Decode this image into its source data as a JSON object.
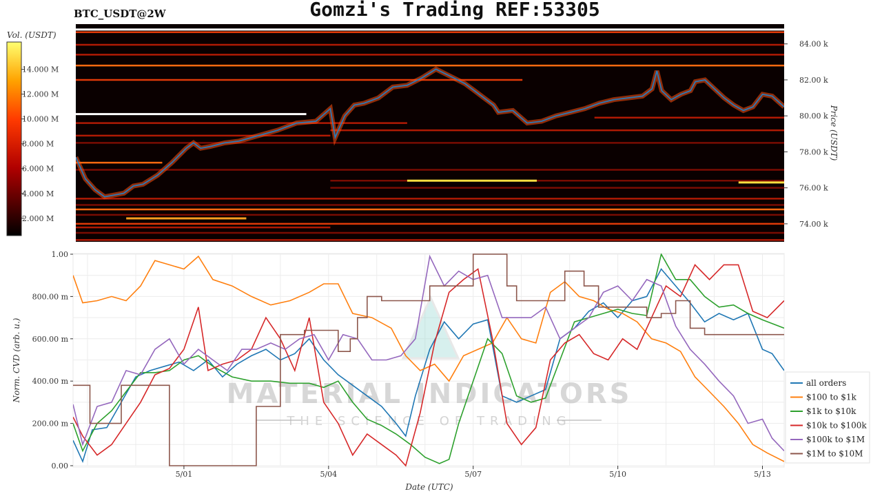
{
  "header": {
    "title": "Gomzi's Trading REF:53305",
    "symbol": "BTC_USDT@2W"
  },
  "watermark": {
    "brand": "MATERIAL INDICATORS",
    "tagline": "THE SCIENCE OF TRADING"
  },
  "colors": {
    "price_line": "#2a7ab8",
    "heatmap_bg": "#0a0000"
  },
  "chart_data": [
    {
      "type": "heatmap",
      "colorbar": {
        "label": "Vol. (USDT)",
        "tick_labels": [
          "14.000 M",
          "12.000 M",
          "10.000 M",
          "8.000 M",
          "6.000 M",
          "4.000 M",
          "2.000 M"
        ],
        "tick_values": [
          14,
          12,
          10,
          8,
          6,
          4,
          2
        ],
        "range": [
          0.6,
          16.2
        ]
      },
      "ylabel": "Price (USDT)",
      "y_tick_labels": [
        "84.00 k",
        "82.00 k",
        "80.00 k",
        "78.00 k",
        "76.00 k",
        "74.00 k"
      ],
      "y_tick_values": [
        84,
        82,
        80,
        78,
        76,
        74
      ],
      "ylim": [
        73.0,
        85.1
      ],
      "xlim": [
        28.7,
        43.45
      ],
      "price_series": {
        "x": [
          28.7,
          28.9,
          29.1,
          29.3,
          29.5,
          29.7,
          29.9,
          30.1,
          30.4,
          30.7,
          31.0,
          31.15,
          31.3,
          31.5,
          31.8,
          32.1,
          32.5,
          32.9,
          33.3,
          33.7,
          34.0,
          34.1,
          34.2,
          34.3,
          34.5,
          34.7,
          35.0,
          35.3,
          35.6,
          35.9,
          36.2,
          36.5,
          36.8,
          37.0,
          37.2,
          37.4,
          37.5,
          37.8,
          38.1,
          38.4,
          38.7,
          39.0,
          39.3,
          39.6,
          39.9,
          40.2,
          40.5,
          40.7,
          40.8,
          40.9,
          41.1,
          41.3,
          41.5,
          41.6,
          41.8,
          42.0,
          42.2,
          42.4,
          42.6,
          42.8,
          43.0,
          43.2,
          43.45
        ],
        "y": [
          77.7,
          76.5,
          75.9,
          75.5,
          75.6,
          75.7,
          76.1,
          76.2,
          76.7,
          77.4,
          78.2,
          78.5,
          78.2,
          78.3,
          78.5,
          78.6,
          78.9,
          79.2,
          79.6,
          79.7,
          80.4,
          78.8,
          79.4,
          80.0,
          80.6,
          80.7,
          81.0,
          81.6,
          81.7,
          82.1,
          82.6,
          82.2,
          81.8,
          81.4,
          81.0,
          80.6,
          80.2,
          80.3,
          79.6,
          79.7,
          80.0,
          80.2,
          80.4,
          80.7,
          80.9,
          81.0,
          81.1,
          81.5,
          82.5,
          81.4,
          80.9,
          81.2,
          81.4,
          81.9,
          82.0,
          81.5,
          81.0,
          80.6,
          80.3,
          80.5,
          81.2,
          81.1,
          80.5
        ]
      },
      "walls": [
        {
          "price": 84.8,
          "x": [
            28.7,
            43.45
          ],
          "level": 1.6
        },
        {
          "price": 84.65,
          "x": [
            28.7,
            43.45
          ],
          "level": 0.8
        },
        {
          "price": 83.95,
          "x": [
            28.7,
            43.45
          ],
          "level": 0.6
        },
        {
          "price": 83.4,
          "x": [
            28.7,
            43.45
          ],
          "level": 0.7
        },
        {
          "price": 82.8,
          "x": [
            28.7,
            43.45
          ],
          "level": 0.9
        },
        {
          "price": 82.0,
          "x": [
            28.7,
            38.0
          ],
          "level": 0.85
        },
        {
          "price": 80.1,
          "x": [
            28.7,
            33.5
          ],
          "level": 1.55
        },
        {
          "price": 79.6,
          "x": [
            28.7,
            35.6
          ],
          "level": 0.7
        },
        {
          "price": 79.2,
          "x": [
            34.0,
            43.45
          ],
          "level": 0.6
        },
        {
          "price": 78.9,
          "x": [
            28.7,
            34.0
          ],
          "level": 0.7
        },
        {
          "price": 78.5,
          "x": [
            28.7,
            43.45
          ],
          "level": 0.5
        },
        {
          "price": 77.0,
          "x": [
            28.7,
            43.45
          ],
          "level": 0.55
        },
        {
          "price": 76.4,
          "x": [
            34.0,
            43.45
          ],
          "level": 0.55
        },
        {
          "price": 76.0,
          "x": [
            34.0,
            43.45
          ],
          "level": 0.5
        },
        {
          "price": 75.4,
          "x": [
            28.7,
            43.45
          ],
          "level": 0.6
        },
        {
          "price": 75.05,
          "x": [
            28.7,
            43.45
          ],
          "level": 0.55
        },
        {
          "price": 74.8,
          "x": [
            28.7,
            43.45
          ],
          "level": 1.0
        },
        {
          "price": 74.5,
          "x": [
            28.7,
            43.45
          ],
          "level": 0.5
        },
        {
          "price": 74.0,
          "x": [
            28.7,
            43.45
          ],
          "level": 0.75
        },
        {
          "price": 73.8,
          "x": [
            28.7,
            34.0
          ],
          "level": 0.6
        },
        {
          "price": 73.5,
          "x": [
            28.7,
            43.45
          ],
          "level": 0.55
        },
        {
          "price": 73.1,
          "x": [
            28.7,
            43.45
          ],
          "level": 0.7
        },
        {
          "price": 76.4,
          "x": [
            35.6,
            38.3
          ],
          "level": 1.3
        },
        {
          "price": 74.3,
          "x": [
            29.75,
            32.25
          ],
          "level": 1.2
        },
        {
          "price": 76.3,
          "x": [
            42.5,
            43.45
          ],
          "level": 1.4
        },
        {
          "price": 77.4,
          "x": [
            28.7,
            30.5
          ],
          "level": 0.9
        },
        {
          "price": 79.9,
          "x": [
            39.5,
            43.45
          ],
          "level": 0.65
        }
      ]
    },
    {
      "type": "line",
      "xlabel": "Date (UTC)",
      "ylabel": "Norm. CVD (arb. u.)",
      "x_tick_labels": [
        "5/01",
        "5/04",
        "5/07",
        "5/10",
        "5/13"
      ],
      "x_tick_values": [
        31,
        34,
        37,
        40,
        43
      ],
      "y_tick_labels": [
        "0.00",
        "200.00 m",
        "400.00 m",
        "600.00 m",
        "800.00 m",
        "1.00"
      ],
      "y_tick_values": [
        0,
        0.2,
        0.4,
        0.6,
        0.8,
        1.0
      ],
      "ylim": [
        0,
        1.0
      ],
      "xlim": [
        28.7,
        43.45
      ],
      "legend_position": "right",
      "series": [
        {
          "name": "all orders",
          "color": "#1f77b4",
          "step": false,
          "x": [
            28.7,
            28.9,
            29.1,
            29.4,
            29.7,
            30.0,
            30.3,
            30.6,
            30.9,
            31.2,
            31.5,
            31.8,
            32.1,
            32.4,
            32.7,
            33.0,
            33.3,
            33.6,
            33.9,
            34.2,
            34.5,
            34.8,
            35.1,
            35.4,
            35.6,
            35.8,
            36.1,
            36.4,
            36.7,
            37.0,
            37.3,
            37.6,
            37.9,
            38.2,
            38.5,
            38.8,
            39.1,
            39.4,
            39.7,
            40.0,
            40.3,
            40.6,
            40.9,
            41.2,
            41.5,
            41.8,
            42.1,
            42.4,
            42.7,
            43.0,
            43.2,
            43.45
          ],
          "y": [
            0.12,
            0.02,
            0.17,
            0.18,
            0.3,
            0.42,
            0.45,
            0.47,
            0.49,
            0.45,
            0.5,
            0.42,
            0.48,
            0.52,
            0.55,
            0.5,
            0.53,
            0.6,
            0.5,
            0.43,
            0.38,
            0.33,
            0.28,
            0.2,
            0.14,
            0.33,
            0.55,
            0.68,
            0.6,
            0.67,
            0.69,
            0.33,
            0.3,
            0.33,
            0.36,
            0.6,
            0.65,
            0.73,
            0.77,
            0.7,
            0.78,
            0.8,
            0.93,
            0.85,
            0.77,
            0.68,
            0.72,
            0.69,
            0.72,
            0.55,
            0.53,
            0.45
          ]
        },
        {
          "name": "$100 to $1k",
          "color": "#ff7f0e",
          "step": false,
          "x": [
            28.7,
            28.9,
            29.2,
            29.5,
            29.8,
            30.1,
            30.4,
            30.7,
            31.0,
            31.3,
            31.6,
            32.0,
            32.4,
            32.8,
            33.2,
            33.6,
            33.9,
            34.2,
            34.5,
            34.9,
            35.3,
            35.6,
            35.9,
            36.2,
            36.5,
            36.8,
            37.1,
            37.4,
            37.7,
            38.0,
            38.3,
            38.6,
            38.9,
            39.2,
            39.5,
            39.8,
            40.1,
            40.4,
            40.7,
            41.0,
            41.3,
            41.6,
            41.9,
            42.2,
            42.5,
            42.8,
            43.1,
            43.45
          ],
          "y": [
            0.9,
            0.77,
            0.78,
            0.8,
            0.78,
            0.85,
            0.97,
            0.95,
            0.93,
            0.99,
            0.88,
            0.85,
            0.8,
            0.76,
            0.78,
            0.82,
            0.86,
            0.86,
            0.72,
            0.7,
            0.65,
            0.52,
            0.45,
            0.48,
            0.4,
            0.52,
            0.55,
            0.58,
            0.7,
            0.6,
            0.58,
            0.82,
            0.87,
            0.8,
            0.78,
            0.74,
            0.72,
            0.68,
            0.6,
            0.58,
            0.54,
            0.42,
            0.35,
            0.28,
            0.2,
            0.1,
            0.06,
            0.02
          ]
        },
        {
          "name": "$1k to $10k",
          "color": "#2ca02c",
          "step": false,
          "x": [
            28.7,
            28.9,
            29.2,
            29.5,
            29.8,
            30.1,
            30.4,
            30.7,
            31.0,
            31.3,
            31.6,
            32.0,
            32.4,
            32.8,
            33.2,
            33.6,
            33.9,
            34.2,
            34.5,
            34.8,
            35.1,
            35.4,
            35.7,
            36.0,
            36.3,
            36.5,
            36.7,
            37.0,
            37.3,
            37.6,
            37.9,
            38.2,
            38.5,
            38.8,
            39.1,
            39.4,
            39.7,
            40.0,
            40.3,
            40.6,
            40.9,
            41.2,
            41.5,
            41.8,
            42.1,
            42.4,
            42.7,
            43.0,
            43.45
          ],
          "y": [
            0.2,
            0.07,
            0.2,
            0.26,
            0.35,
            0.44,
            0.44,
            0.45,
            0.5,
            0.52,
            0.47,
            0.42,
            0.4,
            0.4,
            0.39,
            0.39,
            0.37,
            0.4,
            0.3,
            0.22,
            0.19,
            0.15,
            0.1,
            0.04,
            0.01,
            0.03,
            0.2,
            0.4,
            0.6,
            0.53,
            0.33,
            0.3,
            0.32,
            0.5,
            0.68,
            0.7,
            0.72,
            0.74,
            0.72,
            0.71,
            1.0,
            0.88,
            0.88,
            0.8,
            0.75,
            0.76,
            0.72,
            0.69,
            0.65
          ]
        },
        {
          "name": "$10k to $100k",
          "color": "#d62728",
          "step": false,
          "x": [
            28.7,
            28.9,
            29.2,
            29.5,
            29.8,
            30.1,
            30.4,
            30.7,
            31.0,
            31.3,
            31.5,
            31.8,
            32.1,
            32.4,
            32.7,
            33.0,
            33.3,
            33.6,
            33.9,
            34.2,
            34.5,
            34.8,
            35.1,
            35.4,
            35.6,
            35.9,
            36.2,
            36.5,
            36.8,
            37.1,
            37.4,
            37.7,
            38.0,
            38.3,
            38.6,
            38.9,
            39.2,
            39.5,
            39.8,
            40.1,
            40.4,
            40.7,
            41.0,
            41.3,
            41.6,
            41.9,
            42.2,
            42.5,
            42.8,
            43.1,
            43.45
          ],
          "y": [
            0.23,
            0.14,
            0.05,
            0.1,
            0.2,
            0.3,
            0.43,
            0.46,
            0.55,
            0.75,
            0.45,
            0.48,
            0.5,
            0.55,
            0.7,
            0.6,
            0.45,
            0.7,
            0.3,
            0.2,
            0.05,
            0.15,
            0.1,
            0.05,
            0.0,
            0.25,
            0.58,
            0.82,
            0.88,
            0.93,
            0.6,
            0.2,
            0.1,
            0.18,
            0.5,
            0.58,
            0.62,
            0.53,
            0.5,
            0.6,
            0.55,
            0.7,
            0.85,
            0.8,
            0.95,
            0.88,
            0.95,
            0.95,
            0.73,
            0.7,
            0.78
          ]
        },
        {
          "name": "$100k to $1M",
          "color": "#9467bd",
          "step": false,
          "x": [
            28.7,
            28.9,
            29.2,
            29.5,
            29.8,
            30.1,
            30.4,
            30.7,
            31.0,
            31.3,
            31.6,
            31.9,
            32.2,
            32.5,
            32.8,
            33.1,
            33.4,
            33.7,
            34.0,
            34.3,
            34.6,
            34.9,
            35.2,
            35.5,
            35.8,
            36.1,
            36.4,
            36.7,
            37.0,
            37.3,
            37.6,
            37.9,
            38.2,
            38.5,
            38.8,
            39.1,
            39.4,
            39.7,
            40.0,
            40.3,
            40.6,
            40.9,
            41.2,
            41.5,
            41.8,
            42.1,
            42.4,
            42.7,
            43.0,
            43.2,
            43.45
          ],
          "y": [
            0.29,
            0.1,
            0.28,
            0.3,
            0.45,
            0.43,
            0.55,
            0.6,
            0.48,
            0.55,
            0.5,
            0.45,
            0.55,
            0.55,
            0.58,
            0.55,
            0.6,
            0.62,
            0.5,
            0.62,
            0.6,
            0.5,
            0.5,
            0.52,
            0.6,
            0.99,
            0.85,
            0.92,
            0.88,
            0.9,
            0.7,
            0.7,
            0.7,
            0.75,
            0.6,
            0.65,
            0.7,
            0.82,
            0.85,
            0.78,
            0.88,
            0.85,
            0.66,
            0.55,
            0.48,
            0.4,
            0.33,
            0.2,
            0.22,
            0.13,
            0.07
          ]
        },
        {
          "name": "$1M to $10M",
          "color": "#8c564b",
          "step": true,
          "x": [
            28.7,
            29.05,
            29.5,
            29.7,
            30.0,
            30.35,
            30.7,
            31.0,
            31.3,
            31.7,
            32.0,
            32.3,
            32.5,
            33.0,
            33.5,
            33.9,
            34.2,
            34.45,
            34.6,
            34.8,
            35.1,
            35.5,
            35.8,
            36.1,
            36.5,
            37.0,
            37.3,
            37.5,
            37.7,
            37.9,
            38.2,
            38.6,
            38.9,
            39.3,
            39.6,
            39.9,
            40.3,
            40.6,
            40.9,
            41.2,
            41.5,
            41.8,
            42.0,
            42.3,
            42.7,
            43.0,
            43.45
          ],
          "y": [
            0.38,
            0.2,
            0.2,
            0.38,
            0.38,
            0.38,
            0.0,
            0.0,
            0.0,
            0.0,
            0.0,
            0.0,
            0.28,
            0.62,
            0.64,
            0.64,
            0.54,
            0.6,
            0.7,
            0.8,
            0.78,
            0.78,
            0.78,
            0.85,
            0.85,
            1.0,
            1.0,
            1.0,
            0.85,
            0.78,
            0.78,
            0.78,
            0.92,
            0.85,
            0.75,
            0.75,
            0.75,
            0.7,
            0.72,
            0.78,
            0.65,
            0.62,
            0.62,
            0.62,
            0.62,
            0.62,
            0.62
          ]
        }
      ]
    }
  ]
}
